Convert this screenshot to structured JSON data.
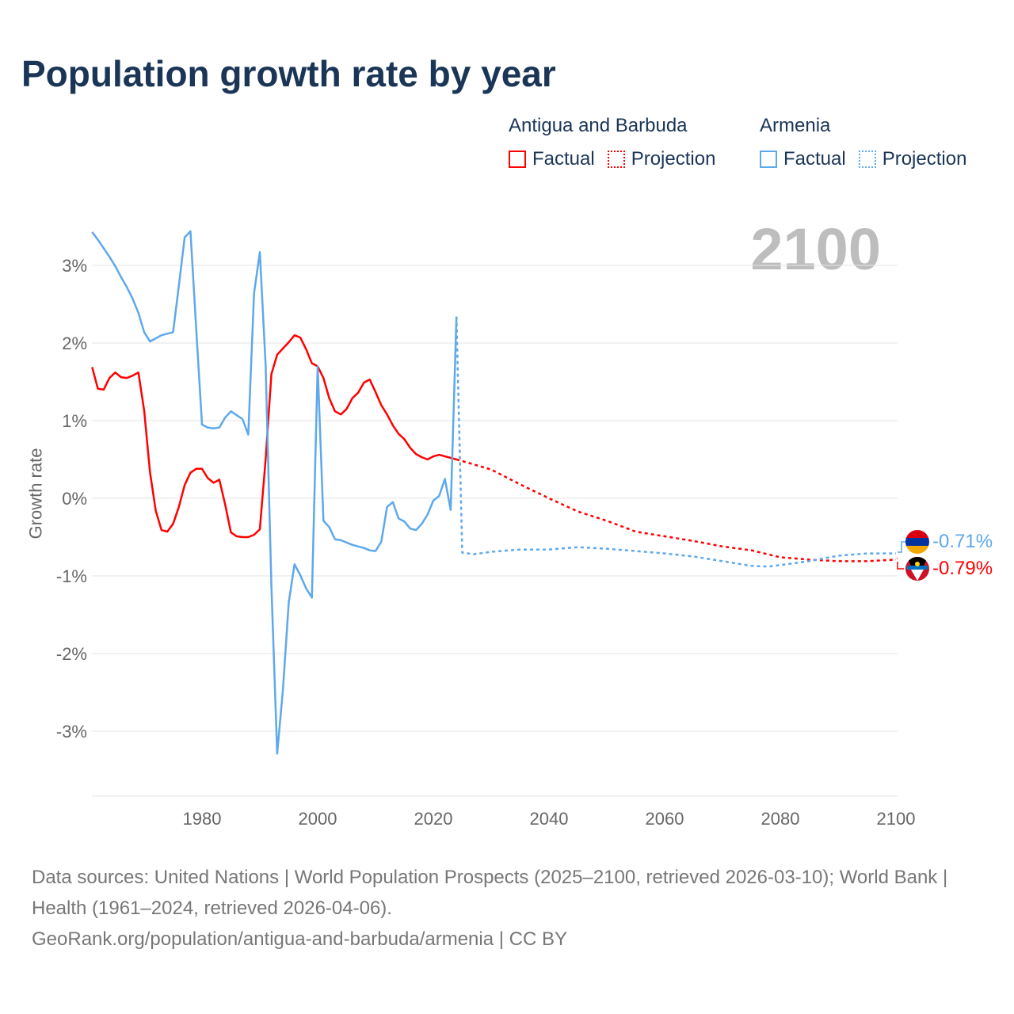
{
  "title": "Population growth rate by year",
  "current_year": "2100",
  "legend": [
    {
      "country": "Antigua and Barbuda",
      "factual": "Factual",
      "projection": "Projection",
      "color": "#ff0000"
    },
    {
      "country": "Armenia",
      "factual": "Factual",
      "projection": "Projection",
      "color": "#5ea8ec"
    }
  ],
  "end_labels": {
    "armenia": "-0.71%",
    "antigua": "-0.79%"
  },
  "footer": {
    "line1": "Data sources: United Nations | World Population Prospects (2025–2100, retrieved 2026-03-10); World Bank | Health (1961–2024, retrieved 2026-04-06).",
    "line2": "GeoRank.org/population/antigua-and-barbuda/armenia | CC BY"
  },
  "chart_data": {
    "type": "line",
    "title": "Population growth rate by year",
    "xlabel": "",
    "ylabel": "Growth rate",
    "xlim": [
      1961,
      2100
    ],
    "ylim": [
      -3.8,
      3.8
    ],
    "x_ticks": [
      "1980",
      "2000",
      "2020",
      "2040",
      "2060",
      "2080",
      "2100"
    ],
    "y_ticks": [
      "3%",
      "2%",
      "1%",
      "0%",
      "-1%",
      "-2%",
      "-3%"
    ],
    "grid": true,
    "series": [
      {
        "name": "Antigua and Barbuda – Factual",
        "color": "#ff0000",
        "dashed": false,
        "x_start": 1961,
        "values": [
          1.69,
          1.41,
          1.4,
          1.55,
          1.62,
          1.56,
          1.55,
          1.58,
          1.62,
          1.13,
          0.34,
          -0.16,
          -0.41,
          -0.43,
          -0.33,
          -0.11,
          0.17,
          0.33,
          0.38,
          0.38,
          0.26,
          0.2,
          0.24,
          -0.08,
          -0.44,
          -0.49,
          -0.5,
          -0.5,
          -0.47,
          -0.4,
          0.5,
          1.6,
          1.85,
          1.93,
          2.01,
          2.1,
          2.07,
          1.92,
          1.74,
          1.7,
          1.55,
          1.29,
          1.12,
          1.08,
          1.15,
          1.29,
          1.36,
          1.49,
          1.53,
          1.37,
          1.2,
          1.08,
          0.94,
          0.83,
          0.76,
          0.65,
          0.57,
          0.53,
          0.5,
          0.54,
          0.56,
          0.54,
          0.52,
          0.5
        ]
      },
      {
        "name": "Antigua and Barbuda – Projection",
        "color": "#ff0000",
        "dashed": true,
        "x": [
          2024,
          2025,
          2030,
          2035,
          2040,
          2045,
          2050,
          2055,
          2060,
          2065,
          2070,
          2075,
          2080,
          2085,
          2090,
          2095,
          2100
        ],
        "values": [
          0.5,
          0.48,
          0.37,
          0.18,
          0.0,
          -0.17,
          -0.29,
          -0.43,
          -0.49,
          -0.55,
          -0.62,
          -0.67,
          -0.76,
          -0.79,
          -0.81,
          -0.81,
          -0.79
        ]
      },
      {
        "name": "Armenia – Factual",
        "color": "#5ea8ec",
        "dashed": false,
        "x_start": 1961,
        "values": [
          3.43,
          3.33,
          3.22,
          3.11,
          2.99,
          2.85,
          2.72,
          2.57,
          2.39,
          2.14,
          2.02,
          2.06,
          2.1,
          2.12,
          2.14,
          2.74,
          3.36,
          3.44,
          2.18,
          0.95,
          0.91,
          0.9,
          0.91,
          1.04,
          1.12,
          1.07,
          1.02,
          0.82,
          2.64,
          3.17,
          1.72,
          -1.13,
          -3.29,
          -2.46,
          -1.34,
          -0.85,
          -0.99,
          -1.16,
          -1.28,
          1.7,
          -0.29,
          -0.37,
          -0.53,
          -0.54,
          -0.57,
          -0.6,
          -0.62,
          -0.64,
          -0.67,
          -0.68,
          -0.56,
          -0.11,
          -0.05,
          -0.26,
          -0.3,
          -0.39,
          -0.41,
          -0.33,
          -0.21,
          -0.03,
          0.03,
          0.25,
          -0.15,
          2.34
        ]
      },
      {
        "name": "Armenia – Projection",
        "color": "#5ea8ec",
        "dashed": true,
        "x": [
          2024,
          2025,
          2027,
          2030,
          2035,
          2040,
          2045,
          2050,
          2055,
          2060,
          2065,
          2070,
          2075,
          2078,
          2080,
          2085,
          2090,
          2095,
          2100
        ],
        "values": [
          2.34,
          -0.7,
          -0.72,
          -0.69,
          -0.66,
          -0.66,
          -0.63,
          -0.65,
          -0.68,
          -0.71,
          -0.75,
          -0.81,
          -0.87,
          -0.88,
          -0.86,
          -0.81,
          -0.74,
          -0.71,
          -0.71
        ]
      }
    ]
  }
}
